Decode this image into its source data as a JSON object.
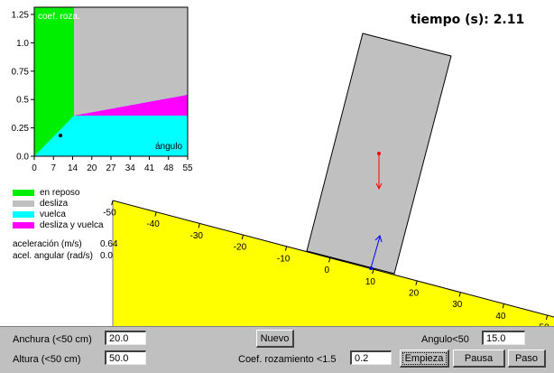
{
  "timer": {
    "label": "tiempo (s): 2.11"
  },
  "phase_chart": {
    "ylabel": "coef. roza.",
    "xlabel": "ángulo",
    "xticks": [
      "0",
      "7",
      "14",
      "20",
      "27",
      "34",
      "41",
      "48",
      "55"
    ],
    "yticks": [
      "0.0",
      "0.25",
      "0.5",
      "0.75",
      "1.0",
      "1.25"
    ],
    "current_point": {
      "angle": 15,
      "friction": 0.2
    }
  },
  "legend": [
    {
      "label": "en reposo",
      "color": "#00ee00"
    },
    {
      "label": "desliza",
      "color": "#c0c0c0"
    },
    {
      "label": "vuelca",
      "color": "#00ffff"
    },
    {
      "label": "desliza y vuelca",
      "color": "#ff00ff"
    }
  ],
  "readouts": {
    "accel_label": "aceleración (m/s)",
    "accel_value": "0.64",
    "angular_label": "acel. angular (rad/s)",
    "angular_value": "0.0"
  },
  "incline": {
    "angle_deg": 15,
    "ticks": [
      "-50",
      "-40",
      "-30",
      "-20",
      "-10",
      "0",
      "10",
      "20",
      "30",
      "40",
      "50"
    ]
  },
  "block": {
    "width_cm": 20,
    "height_cm": 50,
    "position_cm": 10,
    "tilt_deg": 15
  },
  "controls": {
    "width_label": "Anchura (<50 cm)",
    "width_value": "20.0",
    "height_label": "Altura (<50 cm)",
    "height_value": "50.0",
    "new_button": "Nuevo",
    "friction_label": "Coef. rozamiento <1.5",
    "friction_value": "0.2",
    "angle_label": "Angulo<50",
    "angle_value": "15.0",
    "start_button": "Empieza",
    "pause_button": "Pausa",
    "step_button": "Paso"
  }
}
